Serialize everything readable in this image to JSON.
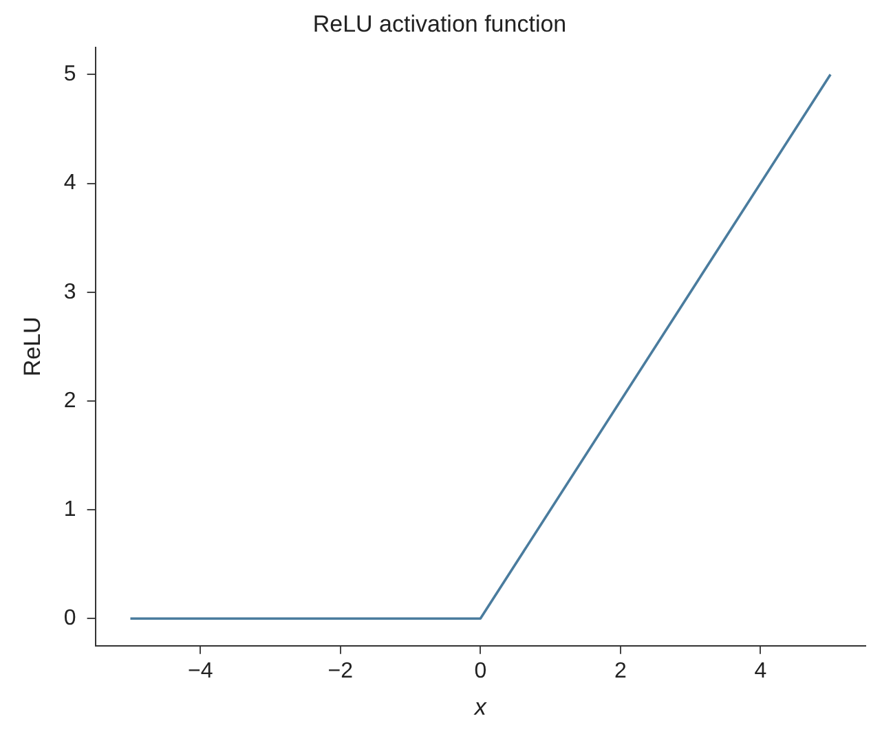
{
  "chart_data": {
    "type": "line",
    "title": "ReLU activation function",
    "xlabel": "x",
    "ylabel": "ReLU",
    "x": [
      -5,
      0,
      5
    ],
    "series": [
      {
        "color": "#4a7c9e",
        "values": [
          0,
          0,
          5
        ]
      }
    ],
    "xlim": [
      -5.5,
      5.5
    ],
    "xticks": [
      -4,
      -2,
      0,
      2,
      4
    ],
    "ylim": [
      -0.25,
      5.25
    ],
    "yticks": [
      0,
      1,
      2,
      3,
      4,
      5
    ],
    "grid": false,
    "legend": false,
    "marker": "none",
    "line_style": "solid"
  }
}
